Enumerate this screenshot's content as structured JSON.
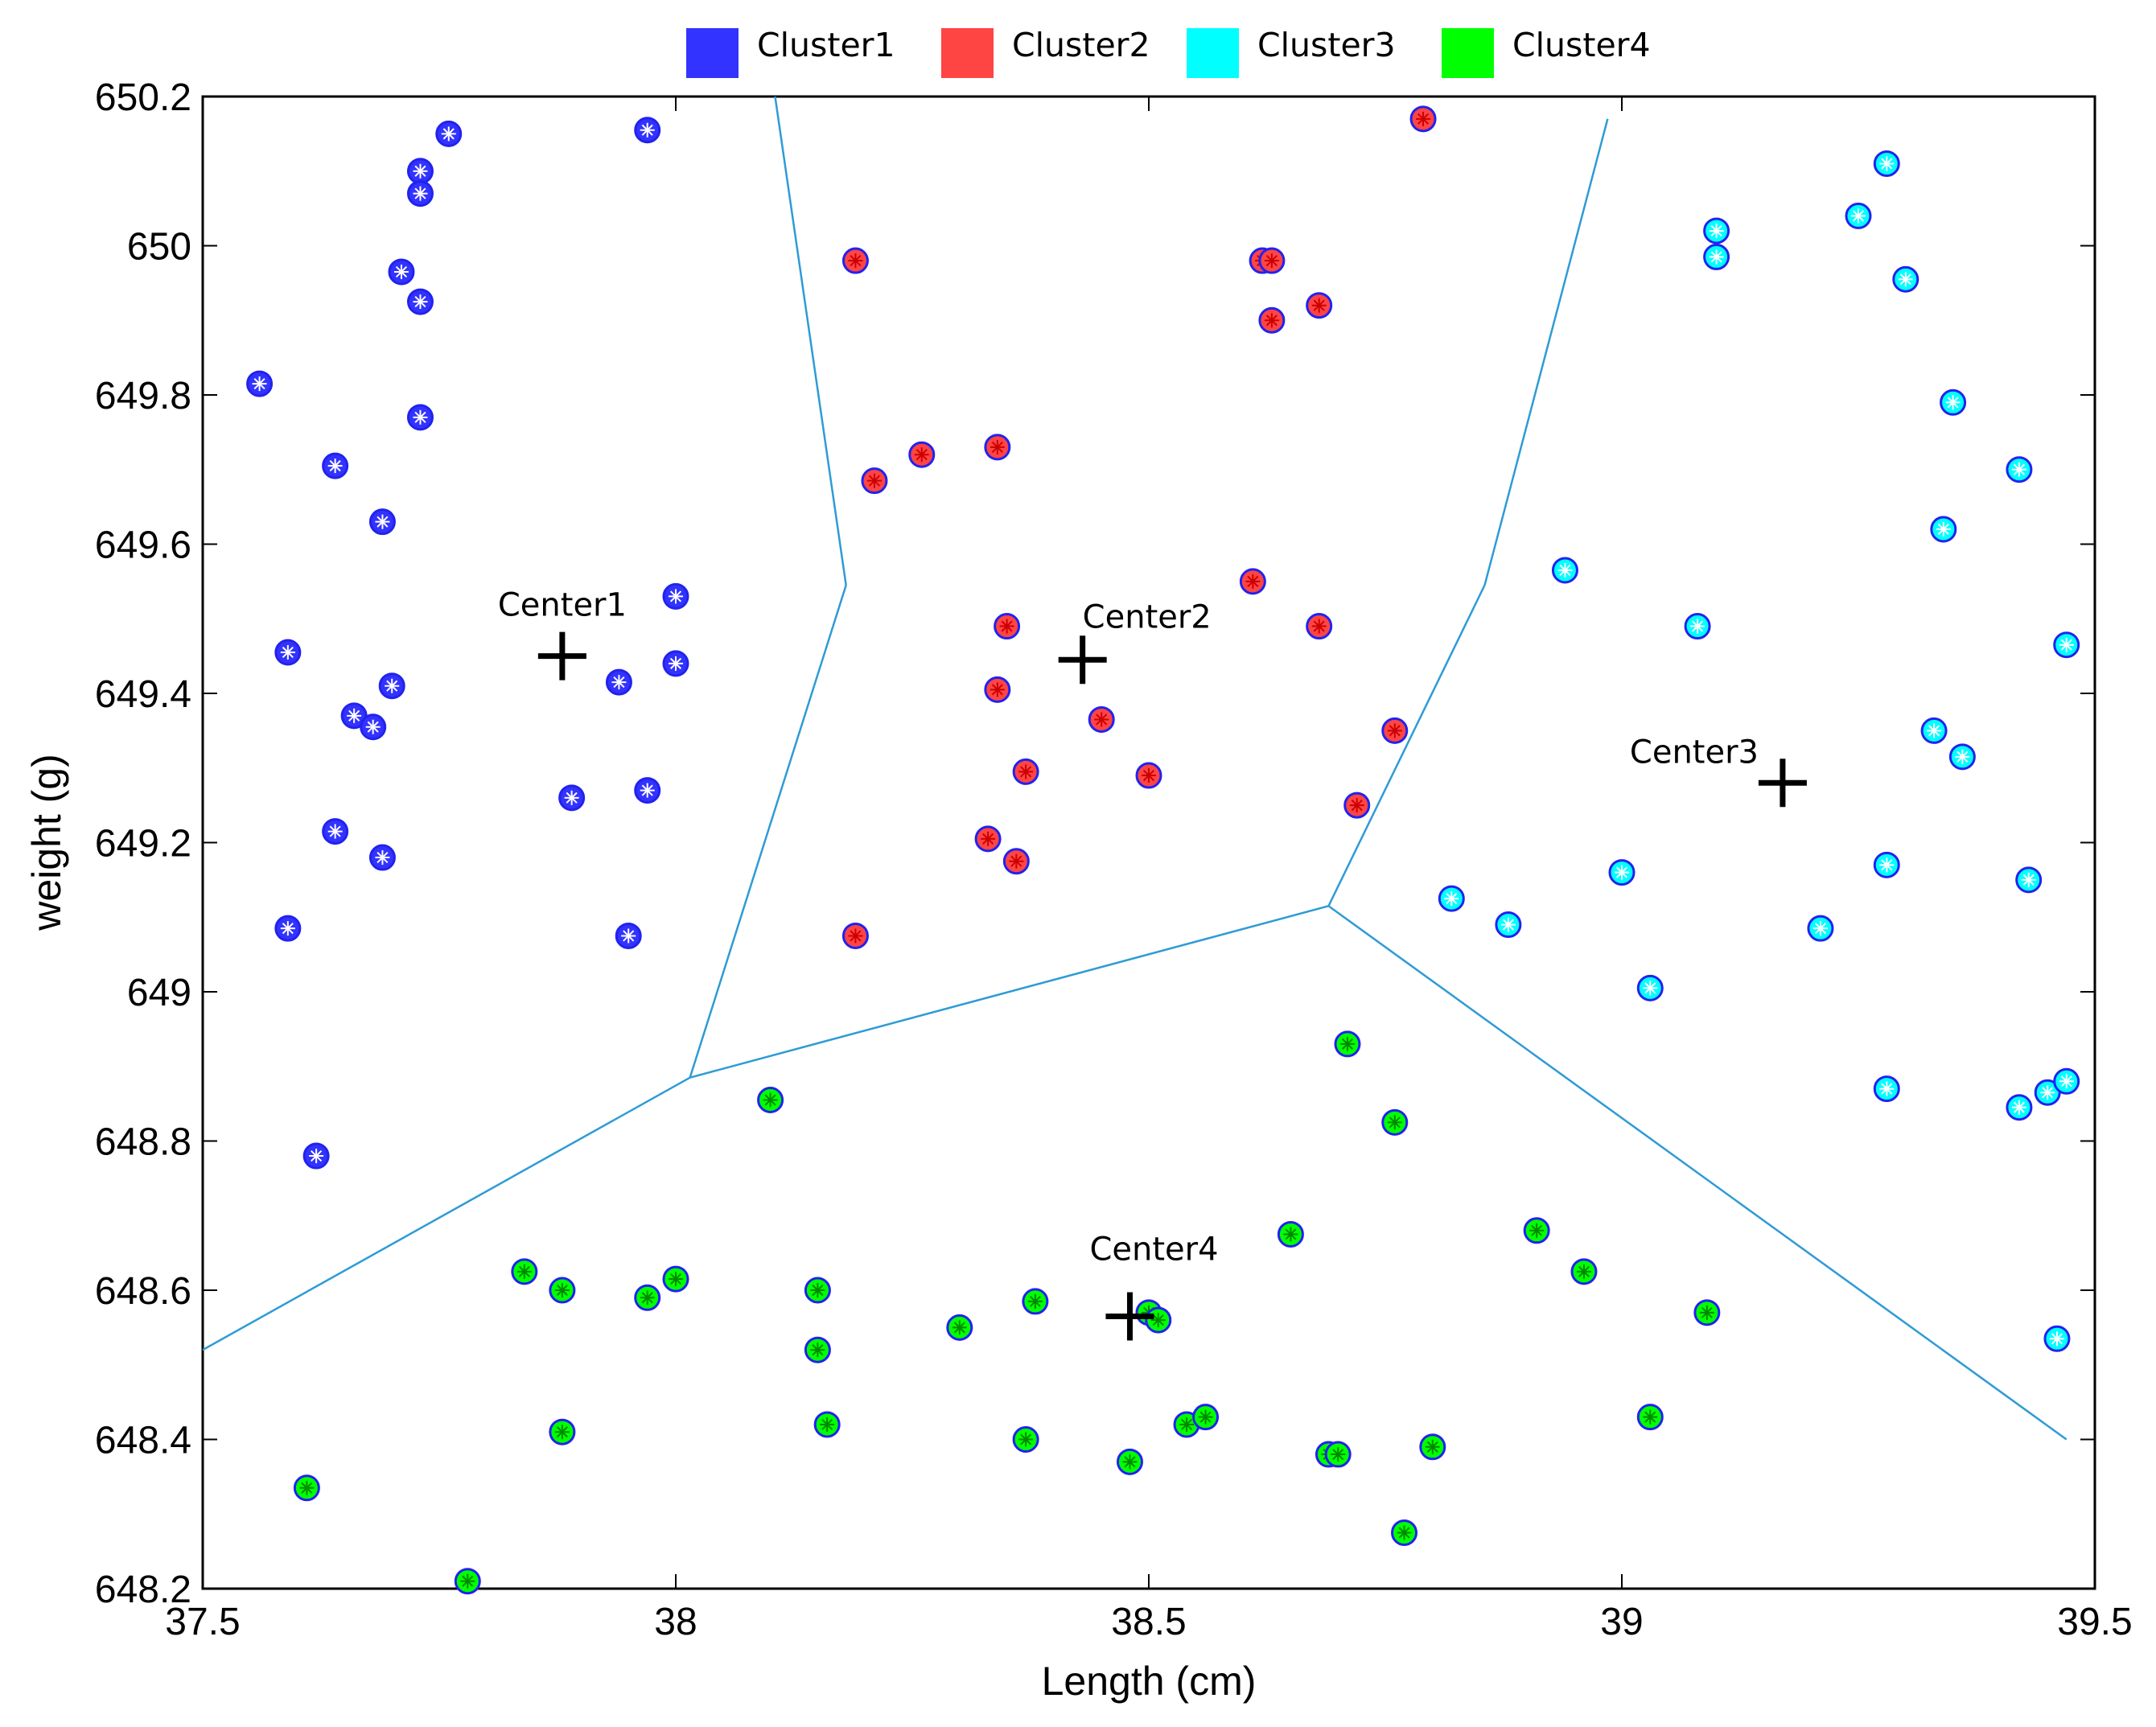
{
  "chart_data": {
    "type": "scatter",
    "title": "",
    "xlabel": "Length (cm)",
    "ylabel": "weight (g)",
    "xlim": [
      37.5,
      39.5
    ],
    "ylim": [
      648.2,
      650.2
    ],
    "xticks": [
      37.5,
      38,
      38.5,
      39,
      39.5
    ],
    "xtick_labels": [
      "37.5",
      "38",
      "38.5",
      "39",
      "39.5"
    ],
    "yticks": [
      648.2,
      648.4,
      648.6,
      648.8,
      649,
      649.2,
      649.4,
      649.6,
      649.8,
      650,
      650.2
    ],
    "ytick_labels": [
      "648.2",
      "648.4",
      "648.6",
      "648.8",
      "649",
      "649.2",
      "649.4",
      "649.6",
      "649.8",
      "650",
      "650.2"
    ],
    "grid": false,
    "legend_position": "top-center",
    "series": [
      {
        "name": "Cluster1",
        "color": "#3333ff",
        "points": [
          [
            37.76,
            650.15
          ],
          [
            37.97,
            650.155
          ],
          [
            37.73,
            650.1
          ],
          [
            37.73,
            650.07
          ],
          [
            37.71,
            649.965
          ],
          [
            37.73,
            649.925
          ],
          [
            37.56,
            649.815
          ],
          [
            37.73,
            649.77
          ],
          [
            37.64,
            649.705
          ],
          [
            37.69,
            649.63
          ],
          [
            37.59,
            649.455
          ],
          [
            38.0,
            649.53
          ],
          [
            38.0,
            649.44
          ],
          [
            37.94,
            649.415
          ],
          [
            37.7,
            649.41
          ],
          [
            37.66,
            649.37
          ],
          [
            37.68,
            649.355
          ],
          [
            37.89,
            649.26
          ],
          [
            37.97,
            649.27
          ],
          [
            37.64,
            649.215
          ],
          [
            37.69,
            649.18
          ],
          [
            37.59,
            649.085
          ],
          [
            37.95,
            649.075
          ],
          [
            37.62,
            648.78
          ]
        ]
      },
      {
        "name": "Cluster2",
        "color": "#ff4444",
        "points": [
          [
            38.79,
            650.17
          ],
          [
            38.19,
            649.98
          ],
          [
            38.62,
            649.98
          ],
          [
            38.63,
            649.98
          ],
          [
            38.68,
            649.92
          ],
          [
            38.63,
            649.9
          ],
          [
            38.21,
            649.685
          ],
          [
            38.26,
            649.72
          ],
          [
            38.34,
            649.73
          ],
          [
            38.61,
            649.55
          ],
          [
            38.35,
            649.49
          ],
          [
            38.68,
            649.49
          ],
          [
            38.34,
            649.405
          ],
          [
            38.45,
            649.365
          ],
          [
            38.76,
            649.35
          ],
          [
            38.37,
            649.295
          ],
          [
            38.5,
            649.29
          ],
          [
            38.72,
            649.25
          ],
          [
            38.33,
            649.205
          ],
          [
            38.36,
            649.175
          ],
          [
            38.19,
            649.075
          ]
        ]
      },
      {
        "name": "Cluster3",
        "color": "#00ffff",
        "points": [
          [
            39.28,
            650.11
          ],
          [
            39.25,
            650.04
          ],
          [
            39.1,
            650.02
          ],
          [
            39.1,
            649.985
          ],
          [
            39.3,
            649.955
          ],
          [
            39.35,
            649.79
          ],
          [
            39.42,
            649.7
          ],
          [
            39.34,
            649.62
          ],
          [
            38.94,
            649.565
          ],
          [
            39.08,
            649.49
          ],
          [
            39.47,
            649.465
          ],
          [
            39.33,
            649.35
          ],
          [
            39.36,
            649.315
          ],
          [
            39.28,
            649.17
          ],
          [
            39.0,
            649.16
          ],
          [
            39.43,
            649.15
          ],
          [
            38.82,
            649.125
          ],
          [
            38.88,
            649.09
          ],
          [
            39.21,
            649.085
          ],
          [
            39.03,
            649.005
          ],
          [
            39.28,
            648.87
          ],
          [
            39.42,
            648.845
          ],
          [
            39.45,
            648.865
          ],
          [
            39.47,
            648.88
          ],
          [
            39.46,
            648.535
          ]
        ]
      },
      {
        "name": "Cluster4",
        "color": "#00ff00",
        "points": [
          [
            38.1,
            648.855
          ],
          [
            38.71,
            648.93
          ],
          [
            38.76,
            648.825
          ],
          [
            38.65,
            648.675
          ],
          [
            38.91,
            648.68
          ],
          [
            38.96,
            648.625
          ],
          [
            37.84,
            648.625
          ],
          [
            37.88,
            648.6
          ],
          [
            37.97,
            648.59
          ],
          [
            38.0,
            648.615
          ],
          [
            38.15,
            648.6
          ],
          [
            38.38,
            648.585
          ],
          [
            38.3,
            648.55
          ],
          [
            38.5,
            648.57
          ],
          [
            38.51,
            648.56
          ],
          [
            38.15,
            648.52
          ],
          [
            39.09,
            648.57
          ],
          [
            38.16,
            648.42
          ],
          [
            38.37,
            648.4
          ],
          [
            38.54,
            648.42
          ],
          [
            38.56,
            648.43
          ],
          [
            39.03,
            648.43
          ],
          [
            37.88,
            648.41
          ],
          [
            38.8,
            648.39
          ],
          [
            38.69,
            648.38
          ],
          [
            38.7,
            648.38
          ],
          [
            38.48,
            648.37
          ],
          [
            37.61,
            648.335
          ],
          [
            38.77,
            648.275
          ],
          [
            37.78,
            648.21
          ]
        ]
      }
    ],
    "centers": [
      {
        "label": "Center1",
        "x": 37.88,
        "y": 649.45
      },
      {
        "label": "Center2",
        "x": 38.43,
        "y": 649.445
      },
      {
        "label": "Center3",
        "x": 39.17,
        "y": 649.28
      },
      {
        "label": "Center4",
        "x": 38.48,
        "y": 648.565
      }
    ],
    "boundaries": {
      "color": "#2e9bd6",
      "segments": [
        [
          [
            38.105,
            650.2
          ],
          [
            38.18,
            649.545
          ]
        ],
        [
          [
            38.18,
            649.545
          ],
          [
            38.015,
            648.885
          ]
        ],
        [
          [
            38.015,
            648.885
          ],
          [
            37.5,
            648.52
          ]
        ],
        [
          [
            38.015,
            648.885
          ],
          [
            38.69,
            649.115
          ]
        ],
        [
          [
            38.69,
            649.115
          ],
          [
            38.855,
            649.545
          ]
        ],
        [
          [
            38.855,
            649.545
          ],
          [
            38.985,
            650.17
          ]
        ],
        [
          [
            38.69,
            649.115
          ],
          [
            39.47,
            648.4
          ]
        ]
      ]
    }
  }
}
